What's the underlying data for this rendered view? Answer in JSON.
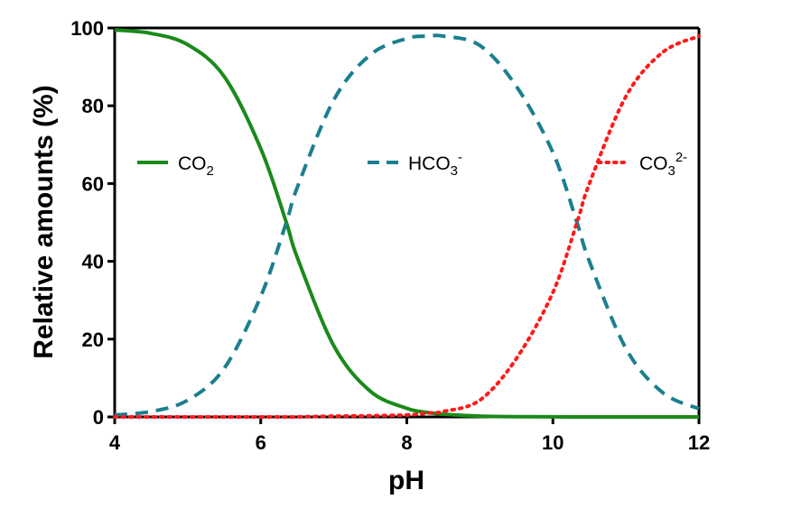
{
  "chart_data": {
    "type": "line",
    "xlabel": "pH",
    "ylabel": "Relative amounts (%)",
    "xlim": [
      4,
      12
    ],
    "ylim": [
      0,
      100
    ],
    "xticks": [
      "4",
      "6",
      "8",
      "10",
      "12"
    ],
    "yticks": [
      "0",
      "20",
      "40",
      "60",
      "80",
      "100"
    ],
    "grid": false,
    "legend_position": "inside, row across middle-top",
    "x": [
      4.0,
      4.5,
      5.0,
      5.5,
      6.0,
      6.35,
      6.5,
      7.0,
      7.5,
      8.0,
      8.3,
      8.5,
      9.0,
      9.5,
      10.0,
      10.33,
      10.5,
      11.0,
      11.5,
      12.0
    ],
    "series": [
      {
        "name": "CO2",
        "name_main": "CO",
        "name_sub": "2",
        "name_sup": "",
        "color": "#1a8a1a",
        "style": "solid",
        "values": [
          99.5,
          98.6,
          95.7,
          87.5,
          69.0,
          50.0,
          41.0,
          18.3,
          6.6,
          2.2,
          1.1,
          0.7,
          0.2,
          0.07,
          0.02,
          0.01,
          0.0,
          0.0,
          0.0,
          0.0
        ]
      },
      {
        "name": "HCO3-",
        "name_main": "HCO",
        "name_sub": "3",
        "name_sup": "-",
        "color": "#1b7f8f",
        "style": "dashed",
        "values": [
          0.5,
          1.4,
          4.3,
          12.5,
          31.0,
          50.0,
          59.0,
          81.5,
          93.1,
          97.3,
          97.9,
          97.9,
          95.5,
          85.0,
          68.0,
          50.0,
          40.0,
          17.6,
          6.3,
          2.1
        ]
      },
      {
        "name": "CO32-",
        "name_main": "CO",
        "name_sub": "3",
        "name_sup": "2-",
        "color": "#ff1a1a",
        "style": "dotted",
        "values": [
          0.0,
          0.0,
          0.0,
          0.0,
          0.0,
          0.0,
          0.0,
          0.2,
          0.3,
          0.5,
          1.0,
          1.4,
          4.3,
          15.0,
          32.0,
          50.0,
          60.0,
          82.4,
          93.7,
          97.9
        ]
      }
    ]
  }
}
